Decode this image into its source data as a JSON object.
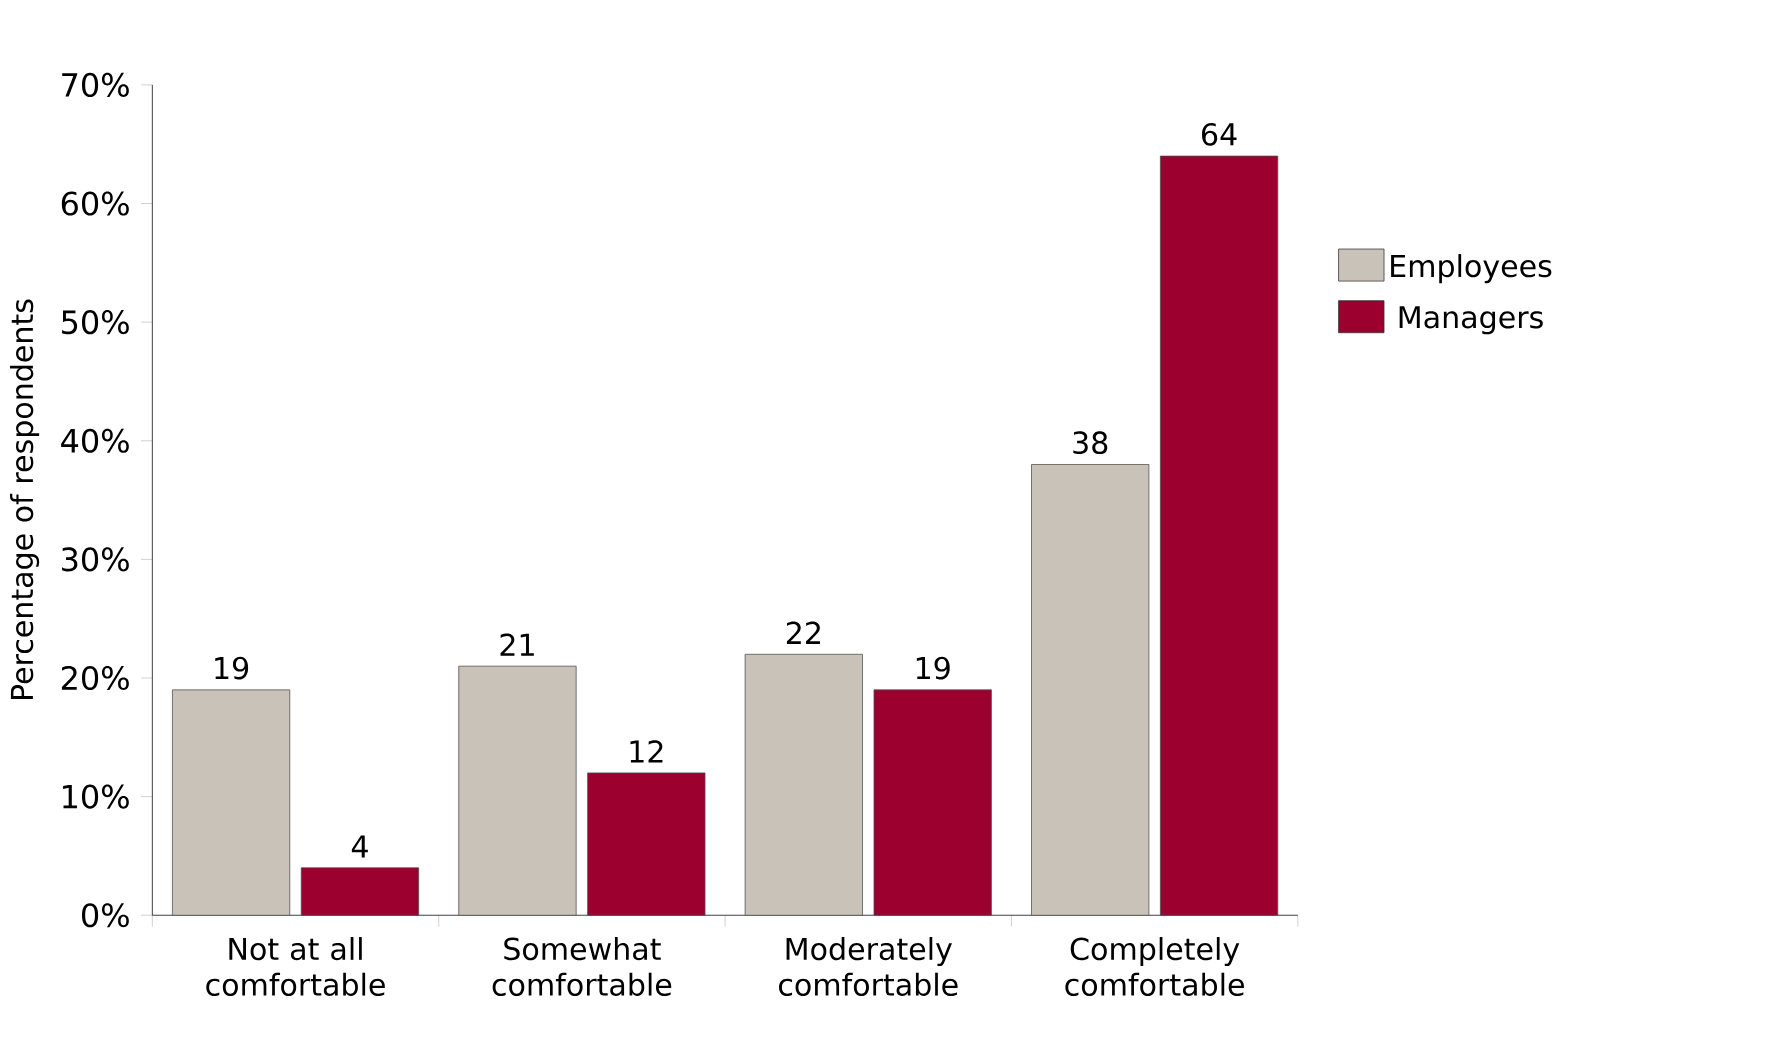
{
  "chart_data": {
    "type": "bar",
    "ylabel": "Percentage of respondents",
    "categories": [
      "Not at all comfortable",
      "Somewhat comfortable",
      "Moderately comfortable",
      "Completely comfortable"
    ],
    "series": [
      {
        "name": "Employees",
        "color": "#c9c2b8",
        "values": [
          19,
          21,
          22,
          38
        ]
      },
      {
        "name": "Managers",
        "color": "#9b002f",
        "values": [
          4,
          12,
          19,
          64
        ]
      }
    ],
    "ylim": [
      0,
      70
    ],
    "yticks": [
      {
        "value": 0,
        "label": "0%"
      },
      {
        "value": 10,
        "label": "10%"
      },
      {
        "value": 20,
        "label": "20%"
      },
      {
        "value": 30,
        "label": "30%"
      },
      {
        "value": 40,
        "label": "40%"
      },
      {
        "value": 50,
        "label": "50%"
      },
      {
        "value": 60,
        "label": "60%"
      },
      {
        "value": 70,
        "label": "70%"
      }
    ],
    "data_labels": true,
    "legend": "right",
    "grid": false
  }
}
